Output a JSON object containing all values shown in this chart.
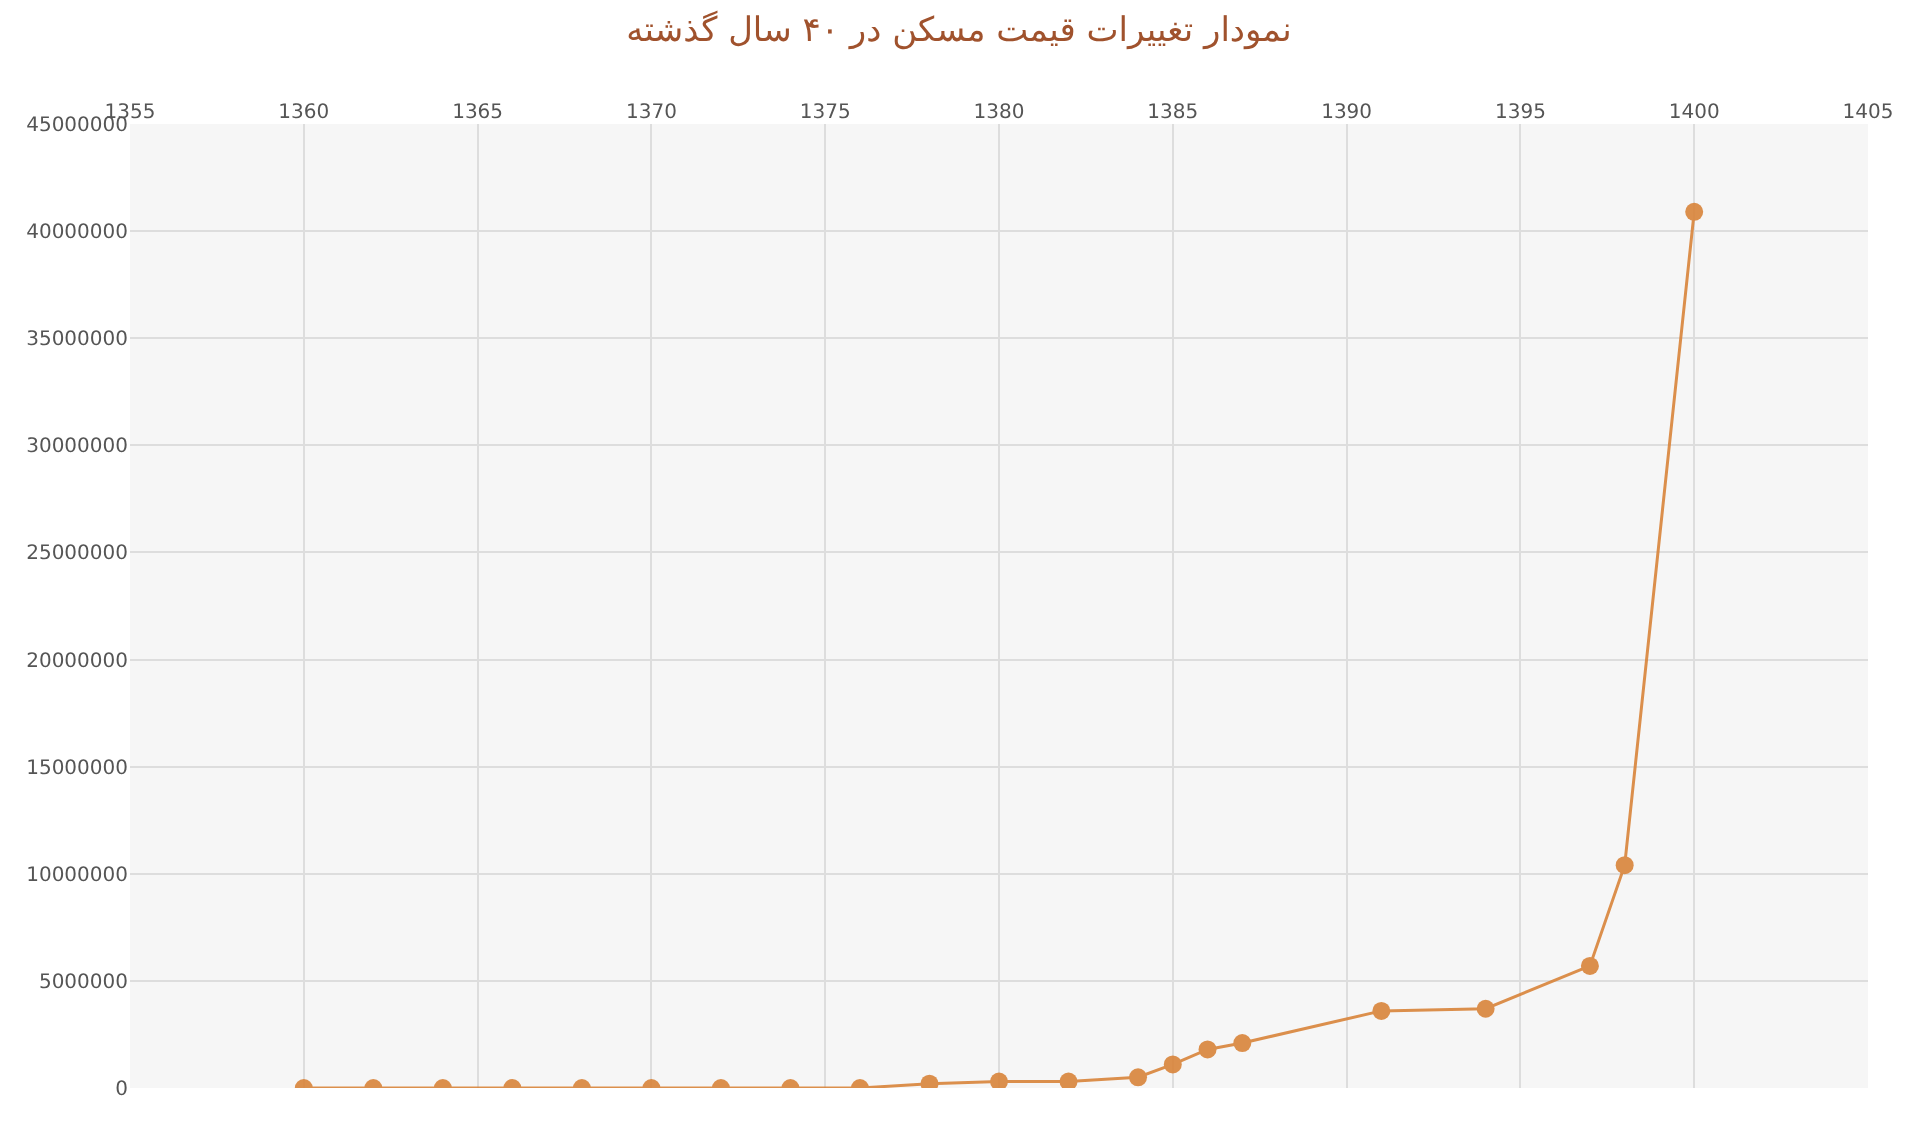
{
  "chart_data": {
    "type": "line",
    "title": "نمودار تغییرات قیمت مسکن در ۴۰ سال گذشته",
    "x": [
      1360,
      1362,
      1364,
      1366,
      1368,
      1370,
      1372,
      1374,
      1376,
      1378,
      1380,
      1382,
      1384,
      1385,
      1386,
      1387,
      1391,
      1394,
      1397,
      1398,
      1400
    ],
    "series": [
      {
        "color": "#d9843a",
        "values": [
          0,
          0,
          0,
          0,
          0,
          0,
          0,
          0,
          0,
          200000,
          300000,
          300000,
          500000,
          1100000,
          1800000,
          2100000,
          3600000,
          3700000,
          5700000,
          10400000,
          40900000
        ]
      }
    ],
    "xlim": [
      1355,
      1405
    ],
    "xticks": [
      1355,
      1360,
      1365,
      1370,
      1375,
      1380,
      1385,
      1390,
      1395,
      1400,
      1405
    ],
    "ylim": [
      0,
      45000000
    ],
    "yticks": [
      0,
      5000000,
      10000000,
      15000000,
      20000000,
      25000000,
      30000000,
      35000000,
      40000000,
      45000000
    ],
    "grid": true,
    "marker": "circle",
    "line_style": "solid"
  }
}
